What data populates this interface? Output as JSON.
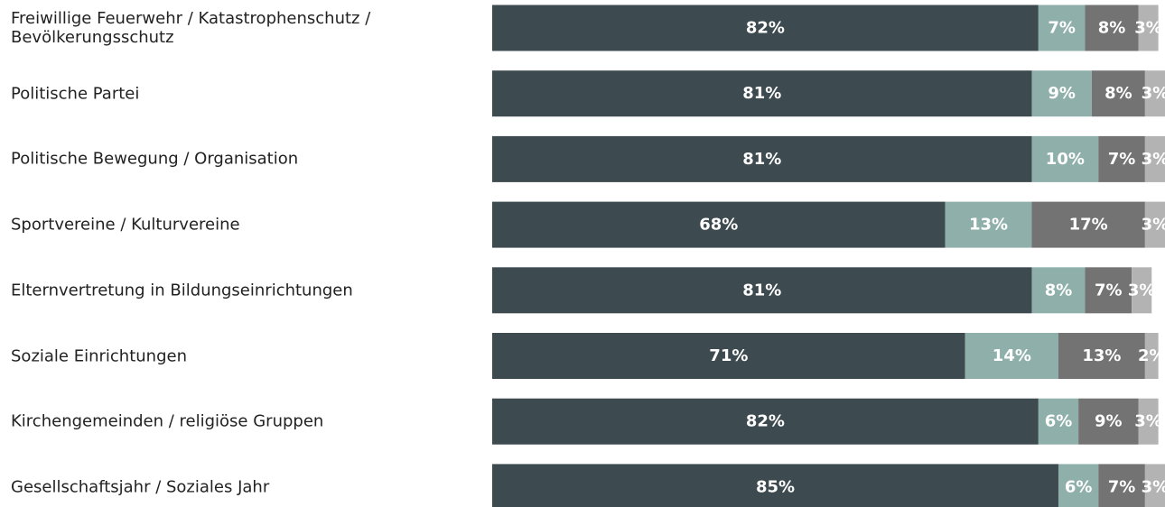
{
  "chart_data": {
    "type": "stacked-bar-horizontal",
    "categories": [
      "Freiwillige Feuerwehr / Katastrophenschutz / Bevölkerungsschutz",
      "Politische Partei",
      "Politische Bewegung / Organisation",
      "Sportvereine / Kulturvereine",
      "Elternvertretung in Bildungseinrichtungen",
      "Soziale Einrichtungen",
      "Kirchengemeinden / religiöse Gruppen",
      "Gesellschaftsjahr / Soziales Jahr"
    ],
    "series": [
      {
        "color": "#3d4a4f",
        "values": [
          82,
          81,
          81,
          68,
          81,
          71,
          82,
          85
        ],
        "value_labels": [
          "82%",
          "81%",
          "81%",
          "68%",
          "81%",
          "71%",
          "82%",
          "85%"
        ]
      },
      {
        "color": "#8fb0aa",
        "values": [
          7,
          9,
          10,
          13,
          8,
          14,
          6,
          6
        ],
        "value_labels": [
          "7%",
          "9%",
          "10%",
          "13%",
          "8%",
          "14%",
          "6%",
          "6%"
        ]
      },
      {
        "color": "#737373",
        "values": [
          8,
          8,
          7,
          17,
          7,
          13,
          9,
          7
        ],
        "value_labels": [
          "8%",
          "8%",
          "7%",
          "17%",
          "7%",
          "13%",
          "9%",
          "7%"
        ]
      },
      {
        "color": "#b3b3b3",
        "values": [
          3,
          3,
          3,
          3,
          3,
          2,
          3,
          3
        ],
        "value_labels": [
          "3%",
          "3%",
          "3%",
          "3%",
          "3%",
          "2%",
          "3%",
          "3%"
        ]
      }
    ],
    "xlim": [
      0,
      101
    ]
  }
}
